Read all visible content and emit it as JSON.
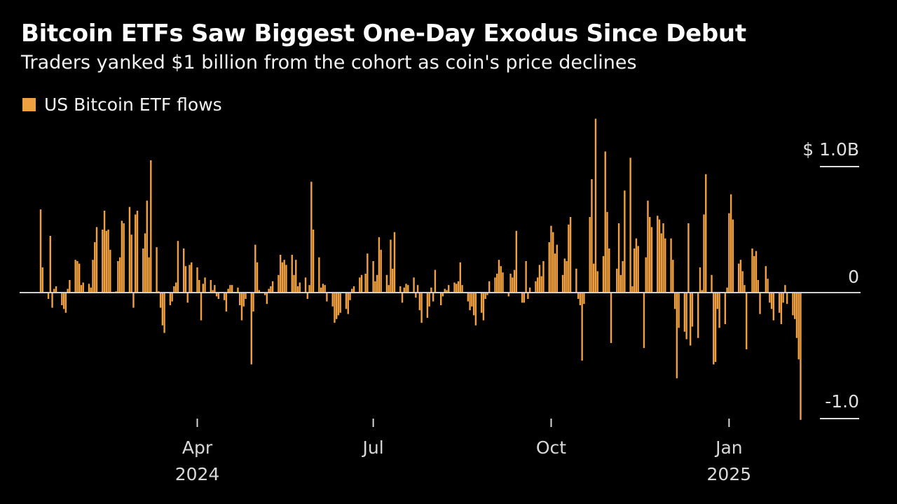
{
  "header": {
    "title": "Bitcoin ETFs Saw Biggest One-Day Exodus Since Debut",
    "subtitle": "Traders yanked $1 billion from the cohort as coin's price declines"
  },
  "colors": {
    "bar": "#f0a040",
    "zero_line": "#d0d0d0",
    "background": "#000000"
  },
  "chart_data": {
    "type": "bar",
    "title": "Bitcoin ETFs Saw Biggest One-Day Exodus Since Debut",
    "subtitle": "Traders yanked $1 billion from the cohort as coin's price declines",
    "xlabel": "",
    "ylabel": "",
    "legend": {
      "position": "top-left",
      "entries": [
        "US Bitcoin ETF flows"
      ]
    },
    "grid": false,
    "x_range": [
      "2024-01-11",
      "2025-03-10"
    ],
    "ylim": [
      -1.1,
      1.35
    ],
    "y_ticks": [
      {
        "value": 1.0,
        "label": "$ 1.0B"
      },
      {
        "value": 0,
        "label": "0"
      },
      {
        "value": -1.0,
        "label": "-1.0"
      }
    ],
    "x_ticks": [
      {
        "date": "2024-04-01",
        "label": "Apr",
        "year": "2024"
      },
      {
        "date": "2024-07-01",
        "label": "Jul",
        "year": ""
      },
      {
        "date": "2024-10-01",
        "label": "Oct",
        "year": ""
      },
      {
        "date": "2025-01-01",
        "label": "Jan",
        "year": "2025"
      }
    ],
    "series": [
      {
        "name": "US Bitcoin ETF flows",
        "start_date": "2024-01-11",
        "frequency": "trading days",
        "values": [
          0.66,
          0.2,
          -0.05,
          0.45,
          -0.12,
          0.03,
          0.05,
          -0.1,
          -0.13,
          -0.16,
          0.03,
          0.1,
          0.26,
          0.25,
          0.23,
          0.06,
          0.08,
          0.07,
          0.04,
          0.26,
          0.4,
          0.52,
          0.5,
          0.65,
          0.49,
          0.5,
          0.34,
          0.01,
          0.25,
          0.28,
          0.57,
          0.55,
          0.68,
          0.46,
          -0.12,
          0.62,
          0.65,
          0.35,
          0.47,
          0.73,
          0.28,
          1.05,
          0.36,
          0.01,
          -0.12,
          -0.26,
          -0.32,
          -0.1,
          -0.07,
          0.05,
          0.08,
          0.41,
          0.35,
          0.21,
          -0.08,
          0.22,
          0.24,
          0.2,
          0.1,
          -0.22,
          0.07,
          0.12,
          0.1,
          0.02,
          0.06,
          -0.03,
          -0.05,
          -0.06,
          -0.15,
          0.03,
          0.06,
          0.06,
          0.04,
          -0.1,
          -0.22,
          -0.11,
          -0.05,
          -0.57,
          -0.15,
          0.38,
          0.24,
          0.02,
          -0.02,
          -0.09,
          0.03,
          0.05,
          0.09,
          0.14,
          0.3,
          0.24,
          0.26,
          0.22,
          0.3,
          0.14,
          0.26,
          0.05,
          0.08,
          0.12,
          -0.05,
          0.06,
          0.88,
          0.5,
          0.28,
          0.04,
          0.07,
          0.06,
          -0.07,
          -0.11,
          -0.24,
          -0.21,
          -0.18,
          -0.16,
          -0.13,
          -0.17,
          -0.06,
          0.03,
          0.05,
          0.12,
          0.14,
          0.0,
          0.15,
          0.31,
          0.25,
          0.09,
          0.14,
          0.44,
          0.34,
          0.14,
          0.06,
          0.42,
          0.19,
          0.48,
          0.05,
          -0.08,
          0.04,
          0.07,
          0.06,
          0.12,
          -0.04,
          0.06,
          -0.14,
          -0.24,
          -0.2,
          -0.11,
          0.04,
          -0.07,
          0.18,
          -0.1,
          -0.03,
          0.03,
          0.02,
          0.06,
          0.08,
          0.07,
          0.09,
          0.24,
          0.06,
          -0.07,
          -0.14,
          -0.11,
          -0.18,
          -0.26,
          -0.16,
          -0.22,
          -0.05,
          -0.02,
          0.09,
          0.12,
          0.15,
          0.26,
          0.21,
          0.16,
          -0.03,
          0.15,
          0.12,
          0.18,
          0.49,
          -0.08,
          -0.08,
          0.25,
          -0.05,
          0.04,
          0.09,
          0.12,
          0.22,
          0.13,
          0.25,
          0.4,
          0.53,
          0.48,
          0.31,
          0.38,
          0.14,
          0.27,
          0.25,
          0.54,
          0.6,
          0.19,
          -0.05,
          -0.1,
          -0.54,
          -0.09,
          0.6,
          0.9,
          0.23,
          1.38,
          0.17,
          0.29,
          1.12,
          0.64,
          0.35,
          -0.4,
          0.19,
          0.55,
          0.14,
          0.25,
          0.81,
          1.07,
          0.05,
          0.35,
          0.43,
          0.37,
          -0.44,
          0.28,
          0.73,
          0.6,
          0.52,
          0.61,
          0.58,
          0.47,
          0.55,
          0.43,
          0.43,
          0.26,
          -0.13,
          -0.68,
          -0.28,
          -0.31,
          -0.37,
          0.55,
          -0.42,
          -0.27,
          -0.36,
          0.2,
          0.02,
          0.62,
          0.94,
          0.14,
          -0.57,
          -0.55,
          -0.13,
          -0.28,
          -0.25,
          0.04,
          0.63,
          0.78,
          0.58,
          0.23,
          0.26,
          0.17,
          0.06,
          -0.45,
          0.35,
          0.29,
          0.33,
          0.1,
          -0.17,
          0.21,
          0.11,
          -0.08,
          -0.13,
          -0.22,
          -0.16,
          -0.25,
          -0.08,
          0.06,
          -0.09,
          -0.18,
          -0.21,
          -0.36,
          -0.53,
          -1.01
        ]
      }
    ]
  }
}
